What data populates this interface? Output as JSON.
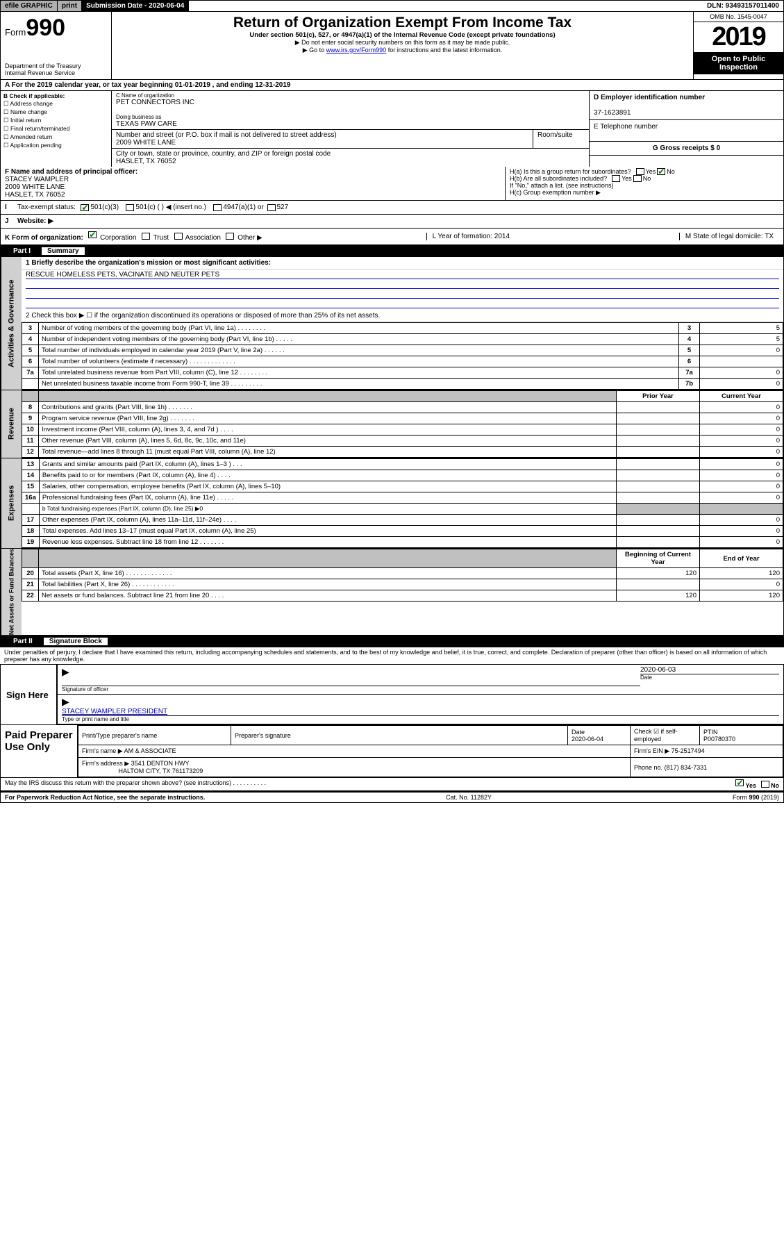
{
  "top": {
    "efile": "efile GRAPHIC",
    "print": "print",
    "sub_date_lbl": "Submission Date - 2020-06-04",
    "dln": "DLN: 93493157011400"
  },
  "header": {
    "form_word": "Form",
    "form_num": "990",
    "dept": "Department of the Treasury",
    "irs": "Internal Revenue Service",
    "title": "Return of Organization Exempt From Income Tax",
    "sub": "Under section 501(c), 527, or 4947(a)(1) of the Internal Revenue Code (except private foundations)",
    "note1": "▶ Do not enter social security numbers on this form as it may be made public.",
    "note2a": "▶ Go to ",
    "note2_link": "www.irs.gov/Form990",
    "note2b": " for instructions and the latest information.",
    "omb": "OMB No. 1545-0047",
    "year": "2019",
    "open": "Open to Public Inspection"
  },
  "taxyear": "A For the 2019 calendar year, or tax year beginning 01-01-2019   , and ending 12-31-2019",
  "b": {
    "lbl": "B Check if applicable:",
    "items": [
      "Address change",
      "Name change",
      "Initial return",
      "Final return/terminated",
      "Amended return",
      "Application pending"
    ]
  },
  "c": {
    "name_lbl": "C Name of organization",
    "name": "PET CONNECTORS INC",
    "dba_lbl": "Doing business as",
    "dba": "TEXAS PAW CARE",
    "street_lbl": "Number and street (or P.O. box if mail is not delivered to street address)",
    "street": "2009 WHITE LANE",
    "room_lbl": "Room/suite",
    "city_lbl": "City or town, state or province, country, and ZIP or foreign postal code",
    "city": "HASLET, TX  76052"
  },
  "d": {
    "lbl": "D Employer identification number",
    "val": "37-1623891"
  },
  "e": {
    "lbl": "E Telephone number",
    "val": ""
  },
  "g": {
    "lbl": "G Gross receipts $ 0"
  },
  "f": {
    "lbl": "F Name and address of principal officer:",
    "name": "STACEY WAMPLER",
    "street": "2009 WHITE LANE",
    "city": "HASLET, TX  76052"
  },
  "h": {
    "ha": "H(a)  Is this a group return for subordinates?",
    "ha_yes": "Yes",
    "ha_no": "No",
    "hb": "H(b)  Are all subordinates included?",
    "hb_note": "If \"No,\" attach a list. (see instructions)",
    "hc": "H(c)  Group exemption number ▶"
  },
  "i": {
    "lbl": "Tax-exempt status:",
    "o1": "501(c)(3)",
    "o2": "501(c) (  ) ◀ (insert no.)",
    "o3": "4947(a)(1) or",
    "o4": "527"
  },
  "j": {
    "lbl": "Website: ▶"
  },
  "k": {
    "lbl": "K Form of organization:",
    "o1": "Corporation",
    "o2": "Trust",
    "o3": "Association",
    "o4": "Other ▶",
    "l": "L Year of formation: 2014",
    "m": "M State of legal domicile: TX"
  },
  "part1": {
    "num": "Part I",
    "title": "Summary"
  },
  "summary": {
    "vert1": "Activities & Governance",
    "vert2": "Revenue",
    "vert3": "Expenses",
    "vert4": "Net Assets or Fund Balances",
    "q1": "1  Briefly describe the organization's mission or most significant activities:",
    "mission": "RESCUE HOMELESS PETS, VACINATE AND NEUTER PETS",
    "q2": "2   Check this box ▶ ☐  if the organization discontinued its operations or disposed of more than 25% of its net assets.",
    "lines_gov": [
      {
        "n": "3",
        "t": "Number of voting members of the governing body (Part VI, line 1a)  .   .   .   .   .   .   .   .",
        "box": "3",
        "v": "5"
      },
      {
        "n": "4",
        "t": "Number of independent voting members of the governing body (Part VI, line 1b)  .   .   .   .   .",
        "box": "4",
        "v": "5"
      },
      {
        "n": "5",
        "t": "Total number of individuals employed in calendar year 2019 (Part V, line 2a)  .   .   .   .   .   .",
        "box": "5",
        "v": "0"
      },
      {
        "n": "6",
        "t": "Total number of volunteers (estimate if necessary)  .   .   .   .   .   .   .   .   .   .   .   .   .",
        "box": "6",
        "v": ""
      },
      {
        "n": "7a",
        "t": "Total unrelated business revenue from Part VIII, column (C), line 12  .   .   .   .   .   .   .   .",
        "box": "7a",
        "v": "0"
      },
      {
        "n": "",
        "t": "Net unrelated business taxable income from Form 990-T, line 39  .   .   .   .   .   .   .   .   .",
        "box": "7b",
        "v": "0"
      }
    ],
    "head_prior": "Prior Year",
    "head_curr": "Current Year",
    "lines_rev": [
      {
        "n": "8",
        "t": "Contributions and grants (Part VIII, line 1h)  .   .   .   .   .   .   .",
        "p": "",
        "c": "0"
      },
      {
        "n": "9",
        "t": "Program service revenue (Part VIII, line 2g)  .   .   .   .   .   .   .",
        "p": "",
        "c": "0"
      },
      {
        "n": "10",
        "t": "Investment income (Part VIII, column (A), lines 3, 4, and 7d )  .   .   .   .",
        "p": "",
        "c": "0"
      },
      {
        "n": "11",
        "t": "Other revenue (Part VIII, column (A), lines 5, 6d, 8c, 9c, 10c, and 11e)",
        "p": "",
        "c": "0"
      },
      {
        "n": "12",
        "t": "Total revenue—add lines 8 through 11 (must equal Part VIII, column (A), line 12)",
        "p": "",
        "c": "0"
      }
    ],
    "lines_exp": [
      {
        "n": "13",
        "t": "Grants and similar amounts paid (Part IX, column (A), lines 1–3 )  .   .   .",
        "p": "",
        "c": "0"
      },
      {
        "n": "14",
        "t": "Benefits paid to or for members (Part IX, column (A), line 4)  .   .   .   .",
        "p": "",
        "c": "0"
      },
      {
        "n": "15",
        "t": "Salaries, other compensation, employee benefits (Part IX, column (A), lines 5–10)",
        "p": "",
        "c": "0"
      },
      {
        "n": "16a",
        "t": "Professional fundraising fees (Part IX, column (A), line 11e)  .   .   .   .   .",
        "p": "",
        "c": "0"
      }
    ],
    "line16b": "b  Total fundraising expenses (Part IX, column (D), line 25) ▶0",
    "lines_exp2": [
      {
        "n": "17",
        "t": "Other expenses (Part IX, column (A), lines 11a–11d, 11f–24e)  .   .   .   .",
        "p": "",
        "c": "0"
      },
      {
        "n": "18",
        "t": "Total expenses. Add lines 13–17 (must equal Part IX, column (A), line 25)",
        "p": "",
        "c": "0"
      },
      {
        "n": "19",
        "t": "Revenue less expenses. Subtract line 18 from line 12  .   .   .   .   .   .   .",
        "p": "",
        "c": "0"
      }
    ],
    "head_beg": "Beginning of Current Year",
    "head_end": "End of Year",
    "lines_na": [
      {
        "n": "20",
        "t": "Total assets (Part X, line 16)  .   .   .   .   .   .   .   .   .   .   .   .   .",
        "p": "120",
        "c": "120"
      },
      {
        "n": "21",
        "t": "Total liabilities (Part X, line 26)  .   .   .   .   .   .   .   .   .   .   .   .",
        "p": "",
        "c": "0"
      },
      {
        "n": "22",
        "t": "Net assets or fund balances. Subtract line 21 from line 20  .   .   .   .",
        "p": "120",
        "c": "120"
      }
    ]
  },
  "part2": {
    "num": "Part II",
    "title": "Signature Block"
  },
  "penalties": "Under penalties of perjury, I declare that I have examined this return, including accompanying schedules and statements, and to the best of my knowledge and belief, it is true, correct, and complete. Declaration of preparer (other than officer) is based on all information of which preparer has any knowledge.",
  "sign": {
    "here": "Sign Here",
    "sig_lbl": "Signature of officer",
    "date": "2020-06-03",
    "date_lbl": "Date",
    "name": "STACEY WAMPLER  PRESIDENT",
    "name_lbl": "Type or print name and title"
  },
  "paid": {
    "title": "Paid Preparer Use Only",
    "h1": "Print/Type preparer's name",
    "h2": "Preparer's signature",
    "h3": "Date",
    "h3v": "2020-06-04",
    "h4": "Check ☑ if self-employed",
    "h5": "PTIN",
    "h5v": "P00780370",
    "firm_lbl": "Firm's name    ▶",
    "firm": "AM & ASSOCIATE",
    "ein_lbl": "Firm's EIN ▶",
    "ein": "75-2517494",
    "addr_lbl": "Firm's address ▶",
    "addr1": "3541 DENTON HWY",
    "addr2": "HALTOM CITY, TX  761173209",
    "phone_lbl": "Phone no.",
    "phone": "(817) 834-7331"
  },
  "footer": {
    "discuss": "May the IRS discuss this return with the preparer shown above? (see instructions)   .   .   .   .   .   .   .   .   .   .",
    "yes": "Yes",
    "no": "No",
    "pra": "For Paperwork Reduction Act Notice, see the separate instructions.",
    "cat": "Cat. No. 11282Y",
    "form": "Form 990 (2019)"
  }
}
